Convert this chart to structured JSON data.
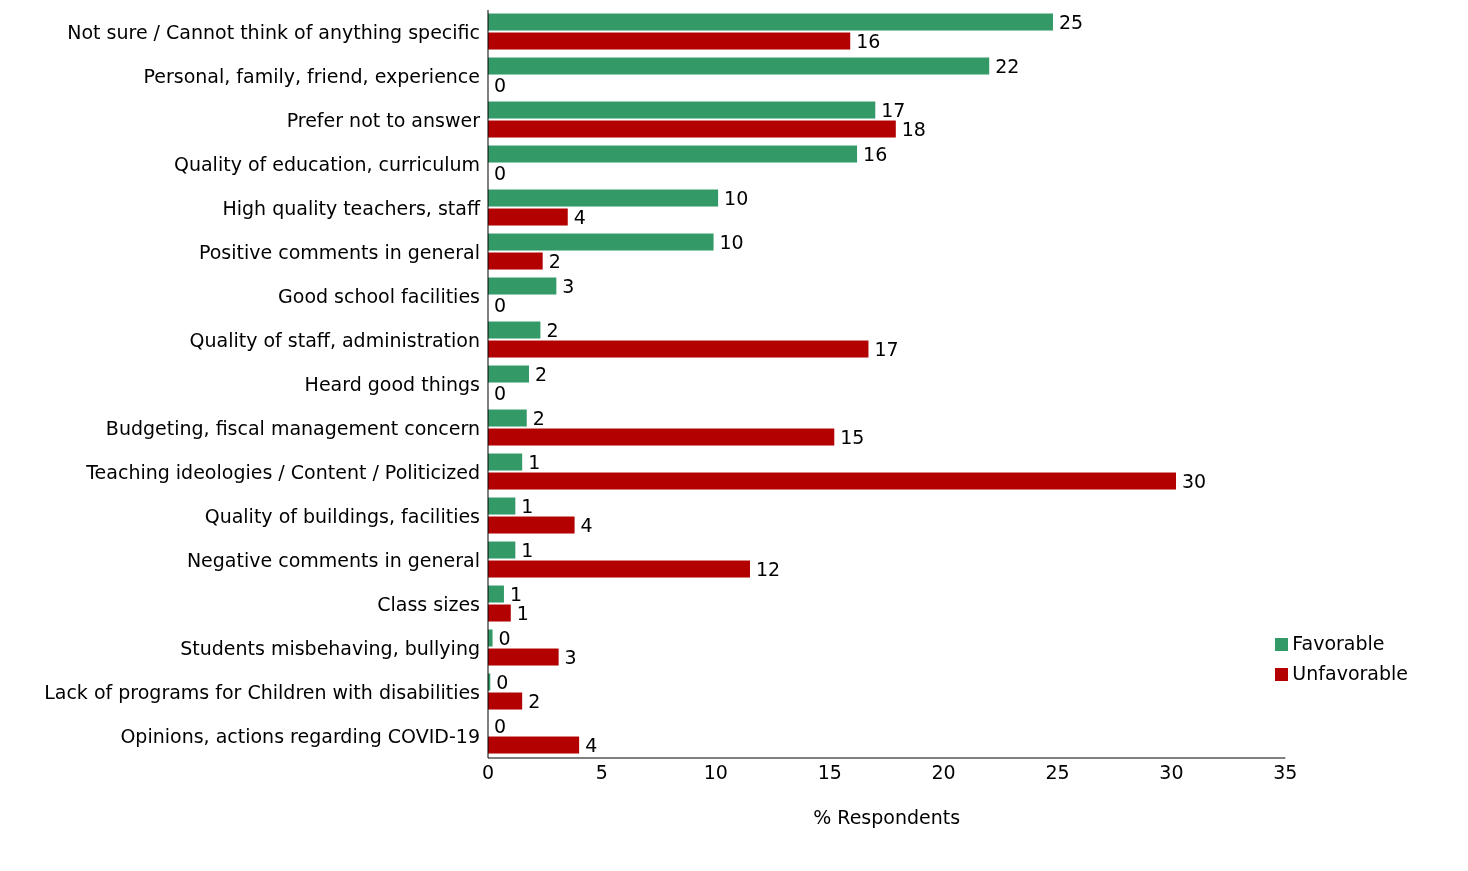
{
  "chart_data": {
    "type": "bar",
    "orientation": "horizontal",
    "xlabel": "% Respondents",
    "categories": [
      "Not sure / Cannot think of anything specific",
      "Personal, family, friend, experience",
      "Prefer not to answer",
      "Quality of education, curriculum",
      "High quality teachers, staff",
      "Positive comments in general",
      "Good school facilities",
      "Quality of staff, administration",
      "Heard good things",
      "Budgeting, fiscal management concern",
      "Teaching ideologies / Content / Politicized",
      "Quality of buildings, facilities",
      "Negative comments in general",
      "Class sizes",
      "Students misbehaving, bullying",
      "Lack of programs for Children with disabilities",
      "Opinions, actions regarding COVID-19"
    ],
    "series": [
      {
        "name": "Favorable",
        "color": "#339966",
        "values": [
          24.8,
          22.0,
          17.0,
          16.2,
          10.1,
          9.9,
          3.0,
          2.3,
          1.8,
          1.7,
          1.5,
          1.2,
          1.2,
          0.7,
          0.2,
          0.1,
          0
        ],
        "value_labels": [
          "25",
          "22",
          "17",
          "16",
          "10",
          "10",
          "3",
          "2",
          "2",
          "2",
          "1",
          "1",
          "1",
          "1",
          "0",
          "0",
          "0"
        ]
      },
      {
        "name": "Unfavorable",
        "color": "#b30000",
        "values": [
          15.9,
          0,
          17.9,
          0,
          3.5,
          2.4,
          0,
          16.7,
          0,
          15.2,
          30.2,
          3.8,
          11.5,
          1.0,
          3.1,
          1.5,
          4.0
        ],
        "value_labels": [
          "16",
          "0",
          "18",
          "0",
          "4",
          "2",
          "0",
          "17",
          "0",
          "15",
          "30",
          "4",
          "12",
          "1",
          "3",
          "2",
          "4"
        ]
      }
    ],
    "xlim": [
      0,
      35
    ],
    "xticks": [
      0,
      5,
      10,
      15,
      20,
      25,
      30,
      35
    ],
    "legend": "right",
    "grid": false
  }
}
